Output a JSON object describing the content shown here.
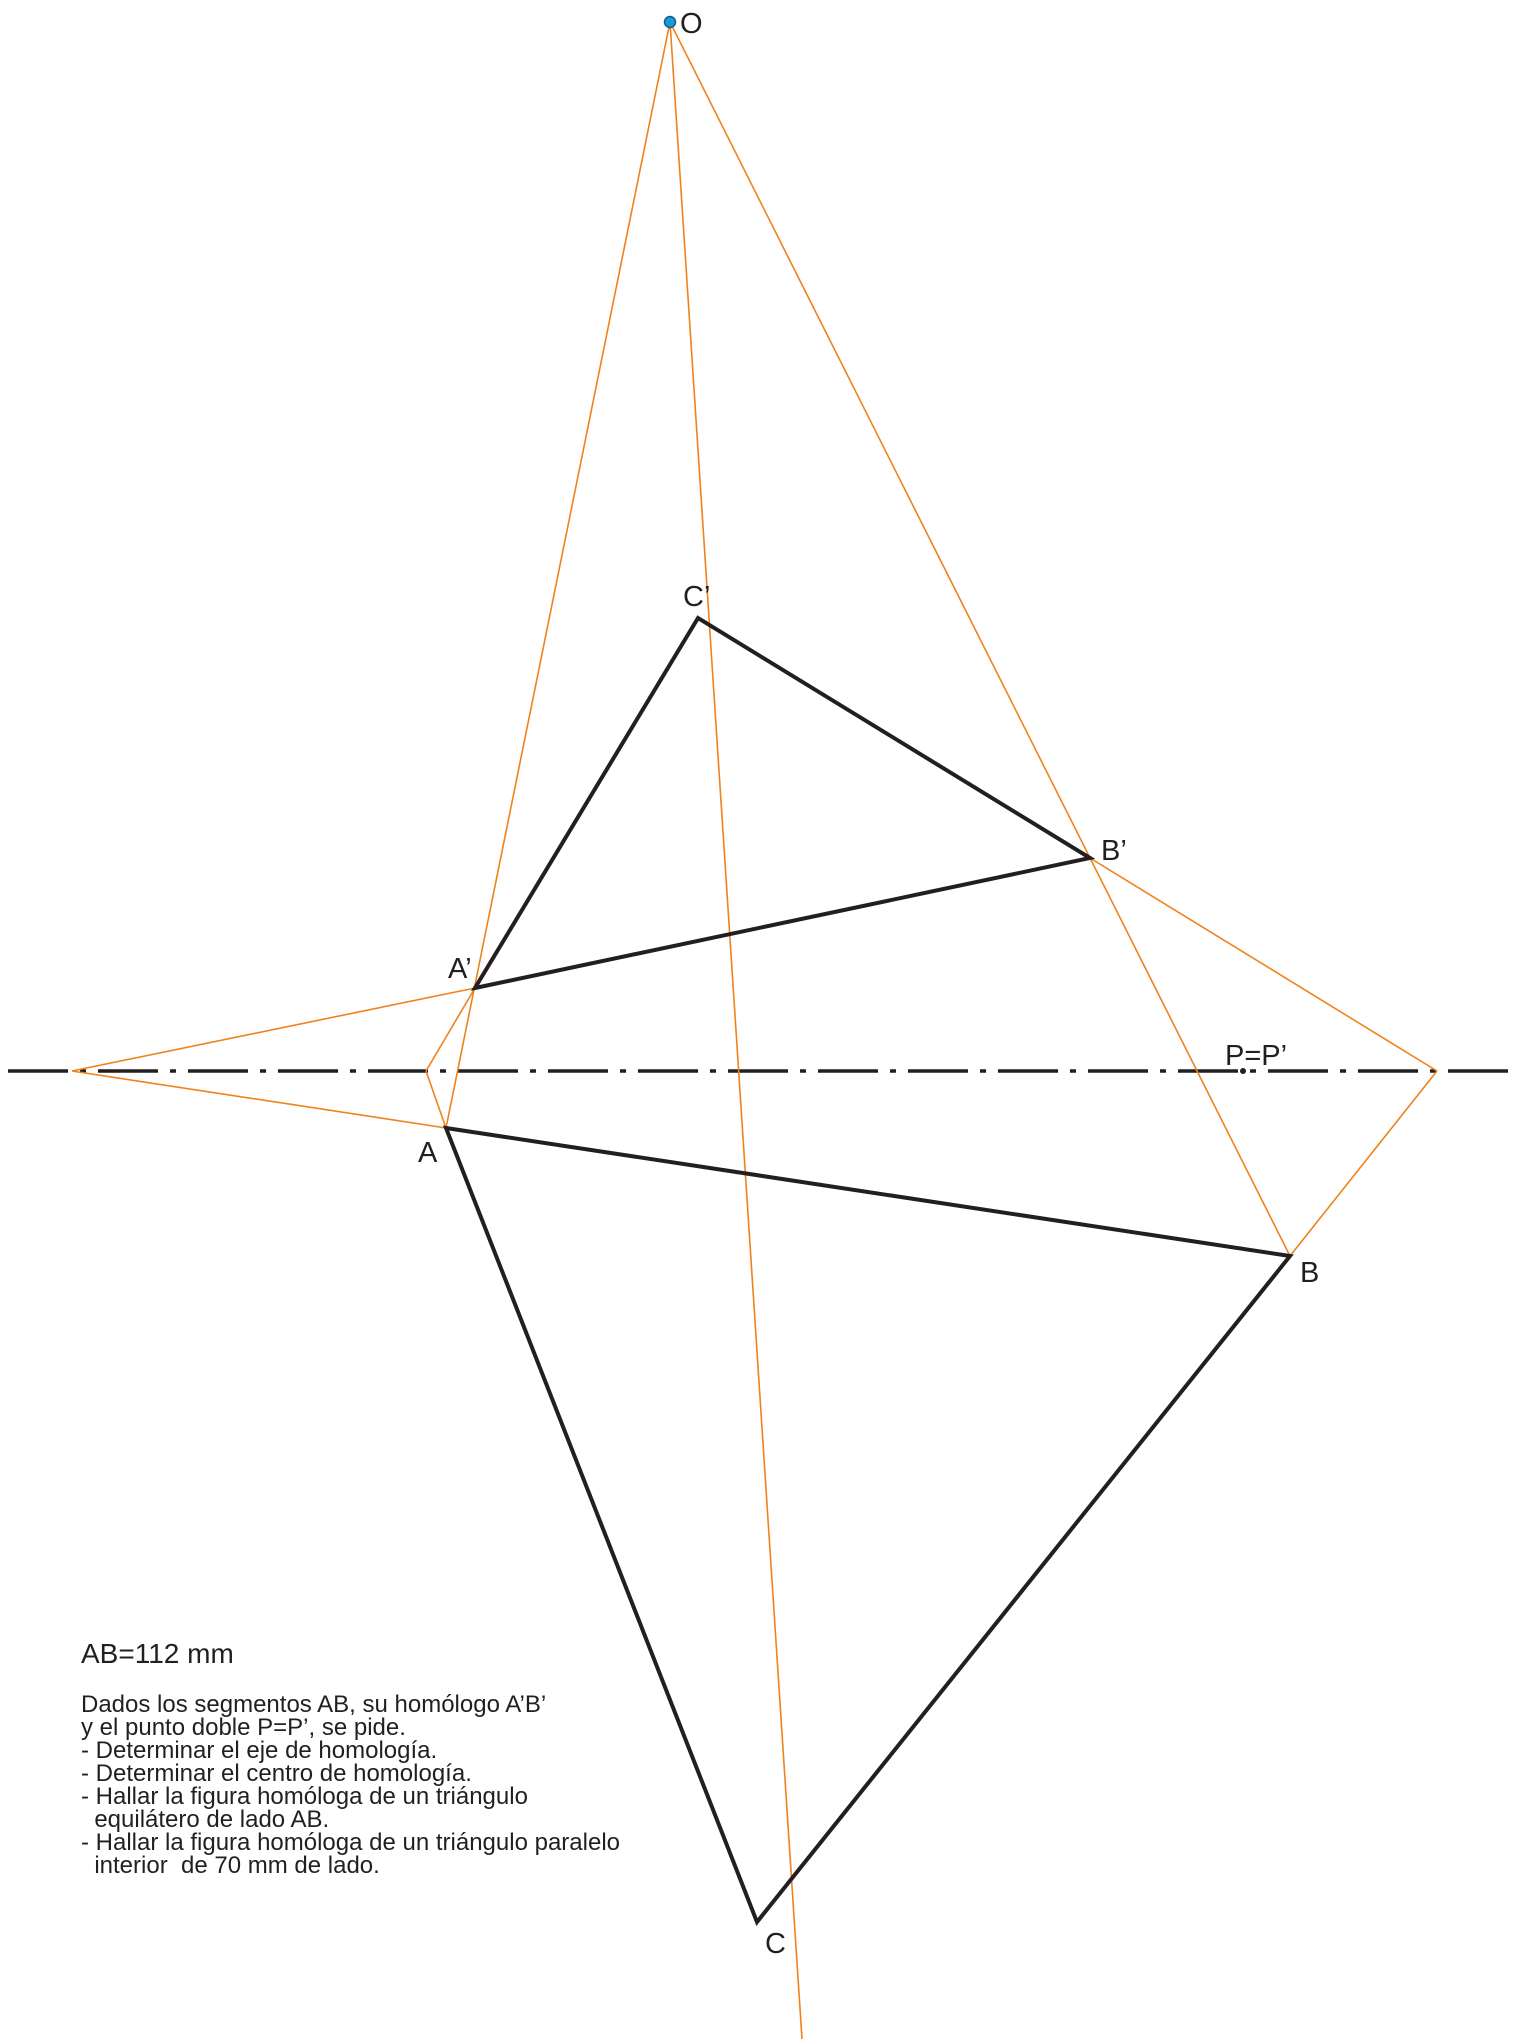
{
  "points": {
    "O": "O",
    "A": "A",
    "B": "B",
    "C": "C",
    "A_prime": "A’",
    "B_prime": "B’",
    "C_prime": "C’",
    "P": "P=P’"
  },
  "colors": {
    "construction_lines": "#f0821e",
    "figure_lines": "#231f20",
    "center_point": "#1b9ad6"
  },
  "statement": {
    "measure": "AB=112 mm",
    "lines": [
      "Dados los segmentos AB, su homólogo A’B’",
      "y el punto doble P=P’, se pide.",
      "- Determinar el eje de homología.",
      "- Determinar el centro de homología.",
      "- Hallar la figura homóloga de un triángulo",
      "  equilátero de lado AB.",
      "- Hallar la figura homóloga de un triángulo paralelo",
      "  interior  de 70 mm de lado."
    ]
  }
}
